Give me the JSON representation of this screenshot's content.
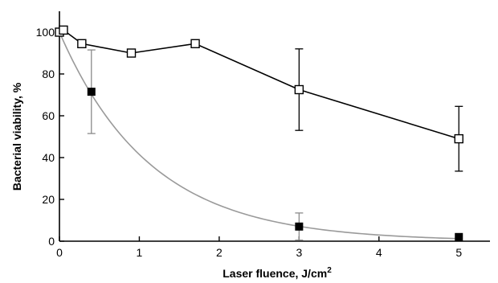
{
  "chart_data": {
    "type": "scatter",
    "xlabel": "Laser fluence, J/cm",
    "xlabel_sup": "2",
    "ylabel": "Bacterial viability, %",
    "xlim": [
      0,
      5.5
    ],
    "ylim": [
      0,
      110
    ],
    "x_ticks": [
      0,
      1,
      2,
      3,
      4,
      5
    ],
    "y_ticks": [
      0,
      20,
      40,
      60,
      80,
      100
    ],
    "x_tick_labels": [
      "0",
      "1",
      "2",
      "3",
      "4",
      "5"
    ],
    "y_tick_labels": [
      "0",
      "20",
      "40",
      "60",
      "80",
      "100"
    ],
    "grid": false,
    "series": [
      {
        "marker": "open-square",
        "line": "black",
        "x": [
          0,
          0.05,
          0.28,
          0.9,
          1.7,
          3.0,
          5.0
        ],
        "y": [
          100,
          101,
          94.5,
          90,
          94.5,
          72.5,
          49
        ],
        "err": [
          0,
          0,
          0,
          0,
          0,
          19.5,
          15.5
        ]
      },
      {
        "marker": "filled-square",
        "line": "gray",
        "x": [
          0,
          0.4,
          3.0,
          5.0
        ],
        "y": [
          100,
          71.5,
          7,
          2
        ],
        "err": [
          0,
          20,
          6.5,
          0
        ],
        "fit": {
          "form": "exponential-decay",
          "y0": 100,
          "k": 0.88,
          "x_max": 5.0
        }
      }
    ]
  }
}
